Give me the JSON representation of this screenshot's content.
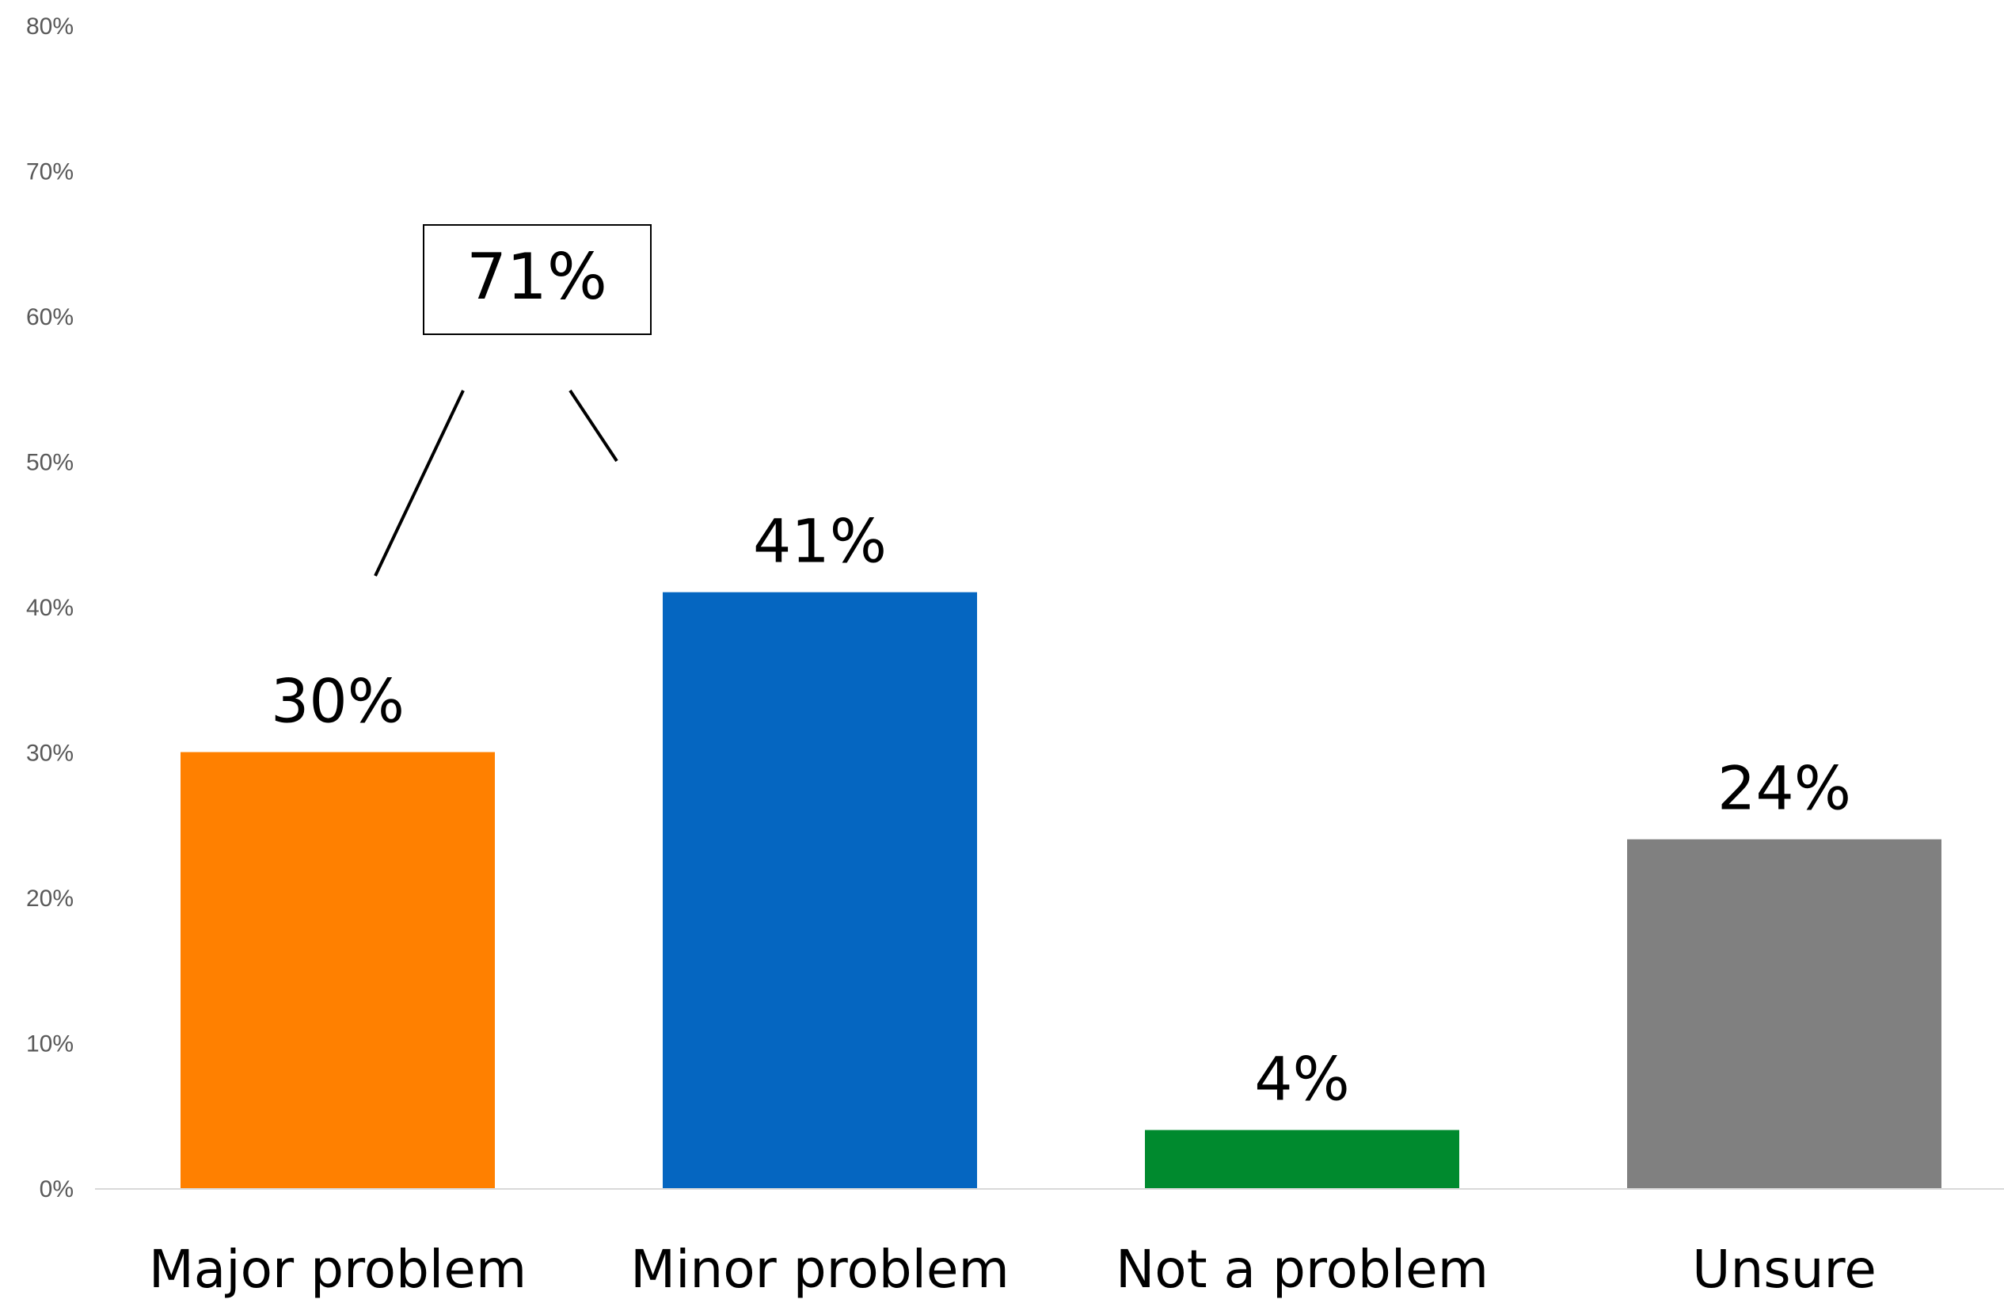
{
  "chart_data": {
    "type": "bar",
    "categories": [
      "Major problem",
      "Minor problem",
      "Not a problem",
      "Unsure"
    ],
    "values": [
      30,
      41,
      4,
      24
    ],
    "data_labels": [
      "30%",
      "41%",
      "4%",
      "24%"
    ],
    "colors": [
      "#FF8000",
      "#0566C1",
      "#008A2E",
      "#808080"
    ],
    "ylim": [
      0,
      80
    ],
    "yticks": [
      0,
      10,
      20,
      30,
      40,
      50,
      60,
      70,
      80
    ],
    "ytick_labels": [
      "0%",
      "10%",
      "20%",
      "30%",
      "40%",
      "50%",
      "60%",
      "70%",
      "80%"
    ],
    "grid": false,
    "title": "",
    "xlabel": "",
    "ylabel": "",
    "callout": {
      "text": "71%",
      "spans_categories": [
        "Major problem",
        "Minor problem"
      ]
    }
  }
}
